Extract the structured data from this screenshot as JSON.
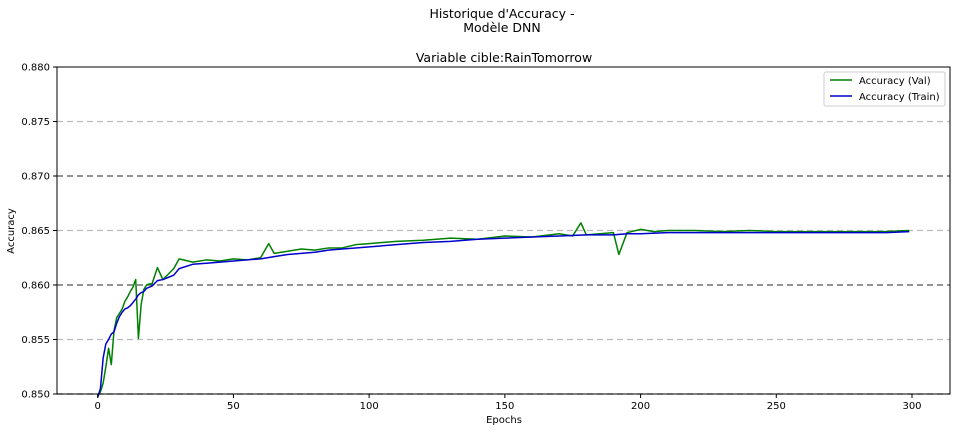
{
  "chart_data": {
    "type": "line",
    "suptitle_line1": "Historique d'Accuracy -",
    "suptitle_line2": "Modèle DNN",
    "title": "Variable cible:RainTomorrow",
    "xlabel": "Epochs",
    "ylabel": "Accuracy",
    "xlim": [
      -15,
      314
    ],
    "ylim": [
      0.85,
      0.88
    ],
    "xticks": [
      0,
      50,
      100,
      150,
      200,
      250,
      300
    ],
    "yticks": [
      0.85,
      0.855,
      0.86,
      0.865,
      0.87,
      0.875,
      0.88
    ],
    "ytick_labels": [
      "0.850",
      "0.855",
      "0.860",
      "0.865",
      "0.870",
      "0.875",
      "0.880"
    ],
    "hlines": [
      {
        "y": 0.85,
        "style": "dashed",
        "color": "#555555"
      },
      {
        "y": 0.855,
        "style": "dashed",
        "color": "#bbbbbb"
      },
      {
        "y": 0.86,
        "style": "dashed",
        "color": "#555555"
      },
      {
        "y": 0.865,
        "style": "dashed",
        "color": "#bbbbbb"
      },
      {
        "y": 0.87,
        "style": "dashed",
        "color": "#555555"
      },
      {
        "y": 0.875,
        "style": "dashed",
        "color": "#bbbbbb"
      }
    ],
    "legend_position": "top-right",
    "series": [
      {
        "name": "Accuracy (Val)",
        "color": "#008000",
        "x": [
          0,
          1,
          2,
          3,
          4,
          5,
          6,
          7,
          8,
          9,
          10,
          11,
          12,
          13,
          14,
          15,
          16,
          17,
          18,
          19,
          20,
          22,
          24,
          26,
          28,
          30,
          35,
          40,
          45,
          50,
          55,
          60,
          63,
          65,
          70,
          75,
          80,
          85,
          90,
          95,
          100,
          110,
          120,
          130,
          140,
          150,
          160,
          170,
          175,
          178,
          180,
          185,
          190,
          192,
          195,
          200,
          205,
          210,
          220,
          230,
          240,
          250,
          260,
          270,
          280,
          290,
          299
        ],
        "values": [
          0.8498,
          0.8502,
          0.851,
          0.8525,
          0.8542,
          0.8527,
          0.8558,
          0.857,
          0.8574,
          0.8578,
          0.8585,
          0.8589,
          0.8594,
          0.8598,
          0.8605,
          0.8551,
          0.8582,
          0.8596,
          0.86,
          0.8601,
          0.8601,
          0.8616,
          0.8605,
          0.861,
          0.8615,
          0.8624,
          0.8621,
          0.8623,
          0.8622,
          0.8624,
          0.8623,
          0.8625,
          0.8638,
          0.8629,
          0.8631,
          0.8633,
          0.8632,
          0.8634,
          0.8634,
          0.8637,
          0.8638,
          0.864,
          0.8641,
          0.8643,
          0.8642,
          0.8645,
          0.8644,
          0.8647,
          0.8645,
          0.8657,
          0.8646,
          0.8647,
          0.8648,
          0.8628,
          0.8648,
          0.8651,
          0.8649,
          0.865,
          0.865,
          0.8649,
          0.865,
          0.8649,
          0.8649,
          0.8649,
          0.8649,
          0.8649,
          0.865
        ]
      },
      {
        "name": "Accuracy (Train)",
        "color": "#0000cc",
        "x": [
          0,
          1,
          2,
          3,
          4,
          5,
          6,
          7,
          8,
          9,
          10,
          11,
          12,
          13,
          14,
          15,
          16,
          17,
          18,
          19,
          20,
          22,
          24,
          26,
          28,
          30,
          35,
          40,
          45,
          50,
          55,
          60,
          65,
          70,
          75,
          80,
          85,
          90,
          95,
          100,
          110,
          120,
          130,
          140,
          150,
          160,
          170,
          180,
          190,
          195,
          200,
          210,
          220,
          230,
          240,
          250,
          260,
          270,
          280,
          290,
          299
        ],
        "values": [
          0.8497,
          0.8505,
          0.8533,
          0.8546,
          0.855,
          0.8555,
          0.8557,
          0.8565,
          0.8571,
          0.8575,
          0.8578,
          0.8579,
          0.8581,
          0.8584,
          0.8587,
          0.8591,
          0.8593,
          0.8594,
          0.8597,
          0.8598,
          0.8599,
          0.8604,
          0.8605,
          0.8607,
          0.8609,
          0.8615,
          0.8619,
          0.862,
          0.8621,
          0.8622,
          0.8623,
          0.8624,
          0.8626,
          0.8628,
          0.8629,
          0.863,
          0.8632,
          0.8633,
          0.8634,
          0.8635,
          0.8637,
          0.8639,
          0.864,
          0.8642,
          0.8643,
          0.8644,
          0.8645,
          0.8646,
          0.8646,
          0.8647,
          0.8647,
          0.8648,
          0.8648,
          0.8648,
          0.8648,
          0.8648,
          0.8648,
          0.8648,
          0.8648,
          0.8648,
          0.8649
        ]
      }
    ]
  }
}
